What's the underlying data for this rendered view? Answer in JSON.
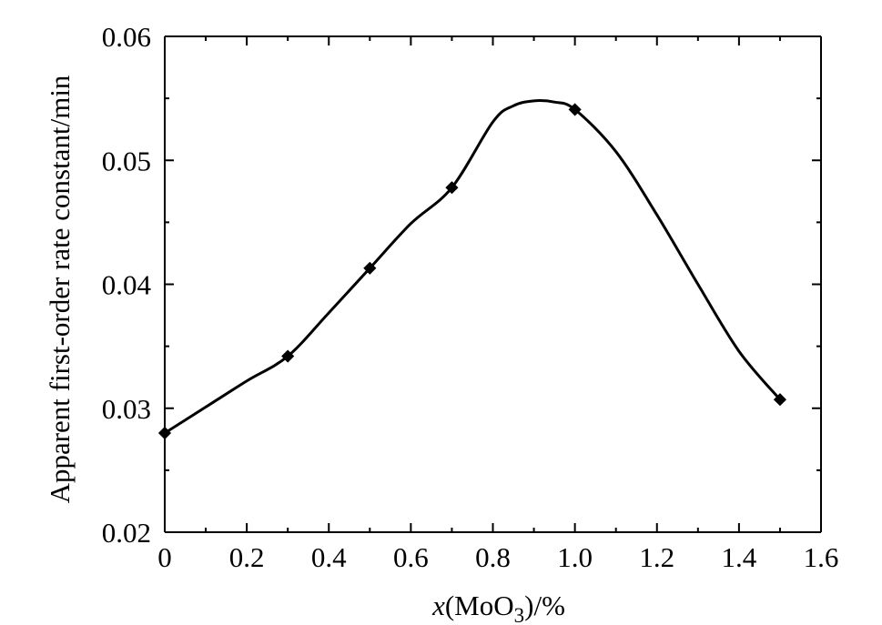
{
  "chart_data": {
    "type": "line",
    "title": "",
    "xlabel": {
      "italic": "x",
      "prefix": "(MoO",
      "sub": "3",
      "suffix": ")/%"
    },
    "ylabel": "Apparent first-order rate constant/min",
    "xlim": [
      0,
      1.6
    ],
    "ylim": [
      0.02,
      0.06
    ],
    "xticks": [
      0,
      0.2,
      0.4,
      0.6,
      0.8,
      1.0,
      1.2,
      1.4,
      1.6
    ],
    "xtick_labels": [
      "0",
      "0.2",
      "0.4",
      "0.6",
      "0.8",
      "1.0",
      "1.2",
      "1.4",
      "1.6"
    ],
    "yticks": [
      0.02,
      0.03,
      0.04,
      0.05,
      0.06
    ],
    "ytick_labels": [
      "0.02",
      "0.03",
      "0.04",
      "0.05",
      "0.06"
    ],
    "grid": false,
    "legend": "none",
    "series": [
      {
        "x": [
          0,
          0.3,
          0.5,
          0.7,
          1.0,
          1.5
        ],
        "y": [
          0.028,
          0.0342,
          0.0413,
          0.0478,
          0.0541,
          0.0307
        ],
        "curve_x": [
          0,
          0.1,
          0.2,
          0.3,
          0.4,
          0.5,
          0.6,
          0.7,
          0.8,
          0.85,
          0.9,
          0.95,
          1.0,
          1.1,
          1.2,
          1.3,
          1.4,
          1.5
        ],
        "curve_y": [
          0.028,
          0.0301,
          0.0322,
          0.0342,
          0.0377,
          0.0413,
          0.0449,
          0.0478,
          0.0531,
          0.0544,
          0.0548,
          0.0547,
          0.0541,
          0.0507,
          0.0456,
          0.04,
          0.0346,
          0.0307
        ]
      }
    ],
    "colors": {
      "line": "#000000",
      "axis": "#000000",
      "background": "#ffffff"
    }
  }
}
